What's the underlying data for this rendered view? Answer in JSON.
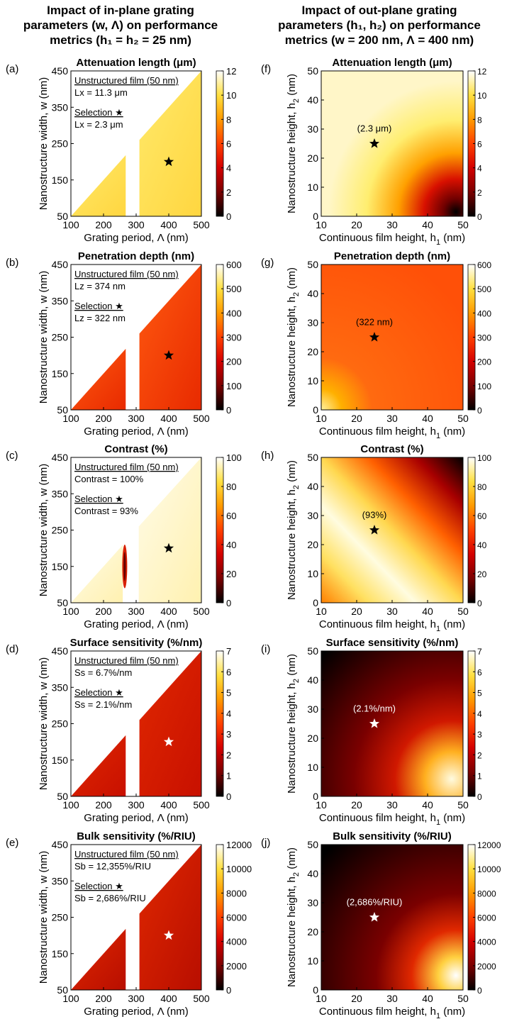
{
  "column_titles": {
    "left": [
      "Impact of in-plane grating",
      "parameters (w, Λ) on performance",
      "metrics (h₁ = h₂ = 25 nm)"
    ],
    "right": [
      "Impact of out-plane grating",
      "parameters (h₁, h₂) on performance",
      "metrics (w = 200 nm, Λ = 400 nm)"
    ]
  },
  "colormap": {
    "name": "hot",
    "stops": [
      "#000000",
      "#7a0000",
      "#d40000",
      "#ff4000",
      "#ff9a00",
      "#ffe040",
      "#ffffff"
    ]
  },
  "panels_left": [
    {
      "letter": "(a)",
      "title": "Attenuation length (μm)",
      "xlabel": "Grating period, Λ (nm)",
      "ylabel": "Nanostructure width, w (nm)",
      "xticks": [
        "100",
        "200",
        "300",
        "400",
        "500"
      ],
      "yticks": [
        "50",
        "150",
        "250",
        "350",
        "450"
      ],
      "cbar_ticks": [
        "0",
        "2",
        "4",
        "6",
        "8",
        "10",
        "12"
      ],
      "info": [
        "Unstructured film (50 nm)",
        "Lx = 11.3 μm",
        "Selection ★",
        "Lx = 2.3 μm"
      ],
      "star_color": "#000000"
    },
    {
      "letter": "(b)",
      "title": "Penetration depth (nm)",
      "xlabel": "Grating period, Λ (nm)",
      "ylabel": "Nanostructure width, w (nm)",
      "xticks": [
        "100",
        "200",
        "300",
        "400",
        "500"
      ],
      "yticks": [
        "50",
        "150",
        "250",
        "350",
        "450"
      ],
      "cbar_ticks": [
        "0",
        "100",
        "200",
        "300",
        "400",
        "500",
        "600"
      ],
      "info": [
        "Unstructured film (50 nm)",
        "Lz = 374 nm",
        "Selection ★",
        "Lz = 322 nm"
      ],
      "star_color": "#000000"
    },
    {
      "letter": "(c)",
      "title": "Contrast (%)",
      "xlabel": "Grating period, Λ (nm)",
      "ylabel": "Nanostructure width, w (nm)",
      "xticks": [
        "100",
        "200",
        "300",
        "400",
        "500"
      ],
      "yticks": [
        "50",
        "150",
        "250",
        "350",
        "450"
      ],
      "cbar_ticks": [
        "0",
        "20",
        "40",
        "60",
        "80",
        "100"
      ],
      "info": [
        "Unstructured film (50 nm)",
        "Contrast = 100%",
        "Selection ★",
        "Contrast = 93%"
      ],
      "star_color": "#000000"
    },
    {
      "letter": "(d)",
      "title": "Surface sensitivity (%/nm)",
      "xlabel": "Grating period, Λ (nm)",
      "ylabel": "Nanostructure width, w (nm)",
      "xticks": [
        "100",
        "200",
        "300",
        "400",
        "500"
      ],
      "yticks": [
        "50",
        "150",
        "250",
        "350",
        "450"
      ],
      "cbar_ticks": [
        "0",
        "1",
        "2",
        "3",
        "4",
        "5",
        "6",
        "7"
      ],
      "info": [
        "Unstructured film (50 nm)",
        "Ss = 6.7%/nm",
        "Selection ★",
        "Ss = 2.1%/nm"
      ],
      "star_color": "#ffffff"
    },
    {
      "letter": "(e)",
      "title": "Bulk sensitivity (%/RIU)",
      "xlabel": "Grating period, Λ (nm)",
      "ylabel": "Nanostructure width, w (nm)",
      "xticks": [
        "100",
        "200",
        "300",
        "400",
        "500"
      ],
      "yticks": [
        "50",
        "150",
        "250",
        "350",
        "450"
      ],
      "cbar_ticks": [
        "0",
        "2000",
        "4000",
        "6000",
        "8000",
        "10000",
        "12000"
      ],
      "info": [
        "Unstructured film (50 nm)",
        "Sb = 12,355%/RIU",
        "Selection ★",
        "Sb = 2,686%/RIU"
      ],
      "star_color": "#ffffff"
    }
  ],
  "panels_right": [
    {
      "letter": "(f)",
      "title": "Attenuation length (μm)",
      "xlabel": "Continuous film height, h1 (nm)",
      "ylabel": "Nanostructure height, h2 (nm)",
      "xticks": [
        "10",
        "20",
        "30",
        "40",
        "50"
      ],
      "yticks": [
        "0",
        "10",
        "20",
        "30",
        "40",
        "50"
      ],
      "cbar_ticks": [
        "0",
        "2",
        "4",
        "6",
        "8",
        "10",
        "12"
      ],
      "star_label": "(2.3 μm)",
      "star_color": "#000000",
      "label_color": "#000000"
    },
    {
      "letter": "(g)",
      "title": "Penetration depth (nm)",
      "xlabel": "Continuous film height, h1 (nm)",
      "ylabel": "Nanostructure height, h2 (nm)",
      "xticks": [
        "10",
        "20",
        "30",
        "40",
        "50"
      ],
      "yticks": [
        "0",
        "10",
        "20",
        "30",
        "40",
        "50"
      ],
      "cbar_ticks": [
        "0",
        "100",
        "200",
        "300",
        "400",
        "500",
        "600"
      ],
      "star_label": "(322 nm)",
      "star_color": "#000000",
      "label_color": "#000000"
    },
    {
      "letter": "(h)",
      "title": "Contrast (%)",
      "xlabel": "Continuous film height, h1 (nm)",
      "ylabel": "Nanostructure height, h2 (nm)",
      "xticks": [
        "10",
        "20",
        "30",
        "40",
        "50"
      ],
      "yticks": [
        "0",
        "10",
        "20",
        "30",
        "40",
        "50"
      ],
      "cbar_ticks": [
        "0",
        "20",
        "40",
        "60",
        "80",
        "100"
      ],
      "star_label": "(93%)",
      "star_color": "#000000",
      "label_color": "#000000"
    },
    {
      "letter": "(i)",
      "title": "Surface sensitivity (%/nm)",
      "xlabel": "Continuous film height, h1 (nm)",
      "ylabel": "Nanostructure height, h2 (nm)",
      "xticks": [
        "10",
        "20",
        "30",
        "40",
        "50"
      ],
      "yticks": [
        "0",
        "10",
        "20",
        "30",
        "40",
        "50"
      ],
      "cbar_ticks": [
        "0",
        "1",
        "2",
        "3",
        "4",
        "5",
        "6",
        "7"
      ],
      "star_label": "(2.1%/nm)",
      "star_color": "#ffffff",
      "label_color": "#ffffff"
    },
    {
      "letter": "(j)",
      "title": "Bulk sensitivity (%/RIU)",
      "xlabel": "Continuous film height, h1 (nm)",
      "ylabel": "Nanostructure height, h2 (nm)",
      "xticks": [
        "10",
        "20",
        "30",
        "40",
        "50"
      ],
      "yticks": [
        "0",
        "10",
        "20",
        "30",
        "40",
        "50"
      ],
      "cbar_ticks": [
        "0",
        "2000",
        "4000",
        "6000",
        "8000",
        "10000",
        "12000"
      ],
      "star_label": "(2,686%/RIU)",
      "star_color": "#ffffff",
      "label_color": "#ffffff"
    }
  ],
  "chart_data": [
    {
      "type": "heatmap",
      "panel": "a",
      "selection": {
        "x": 400,
        "y": 200,
        "value": 2.3
      },
      "reference_value": 11.3,
      "xlim": [
        100,
        500
      ],
      "ylim": [
        50,
        450
      ],
      "clim": [
        0,
        12
      ]
    },
    {
      "type": "heatmap",
      "panel": "b",
      "selection": {
        "x": 400,
        "y": 200,
        "value": 322
      },
      "reference_value": 374,
      "xlim": [
        100,
        500
      ],
      "ylim": [
        50,
        450
      ],
      "clim": [
        0,
        600
      ]
    },
    {
      "type": "heatmap",
      "panel": "c",
      "selection": {
        "x": 400,
        "y": 200,
        "value": 93
      },
      "reference_value": 100,
      "xlim": [
        100,
        500
      ],
      "ylim": [
        50,
        450
      ],
      "clim": [
        0,
        100
      ]
    },
    {
      "type": "heatmap",
      "panel": "d",
      "selection": {
        "x": 400,
        "y": 200,
        "value": 2.1
      },
      "reference_value": 6.7,
      "xlim": [
        100,
        500
      ],
      "ylim": [
        50,
        450
      ],
      "clim": [
        0,
        7
      ]
    },
    {
      "type": "heatmap",
      "panel": "e",
      "selection": {
        "x": 400,
        "y": 200,
        "value": 2686
      },
      "reference_value": 12355,
      "xlim": [
        100,
        500
      ],
      "ylim": [
        50,
        450
      ],
      "clim": [
        0,
        12000
      ]
    },
    {
      "type": "heatmap",
      "panel": "f",
      "selection": {
        "x": 25,
        "y": 25,
        "value": 2.3
      },
      "xlim": [
        10,
        50
      ],
      "ylim": [
        0,
        50
      ],
      "clim": [
        0,
        12
      ]
    },
    {
      "type": "heatmap",
      "panel": "g",
      "selection": {
        "x": 25,
        "y": 25,
        "value": 322
      },
      "xlim": [
        10,
        50
      ],
      "ylim": [
        0,
        50
      ],
      "clim": [
        0,
        600
      ]
    },
    {
      "type": "heatmap",
      "panel": "h",
      "selection": {
        "x": 25,
        "y": 25,
        "value": 93
      },
      "xlim": [
        10,
        50
      ],
      "ylim": [
        0,
        50
      ],
      "clim": [
        0,
        100
      ]
    },
    {
      "type": "heatmap",
      "panel": "i",
      "selection": {
        "x": 25,
        "y": 25,
        "value": 2.1
      },
      "xlim": [
        10,
        50
      ],
      "ylim": [
        0,
        50
      ],
      "clim": [
        0,
        7
      ]
    },
    {
      "type": "heatmap",
      "panel": "j",
      "selection": {
        "x": 25,
        "y": 25,
        "value": 2686
      },
      "xlim": [
        10,
        50
      ],
      "ylim": [
        0,
        50
      ],
      "clim": [
        0,
        12000
      ]
    }
  ]
}
